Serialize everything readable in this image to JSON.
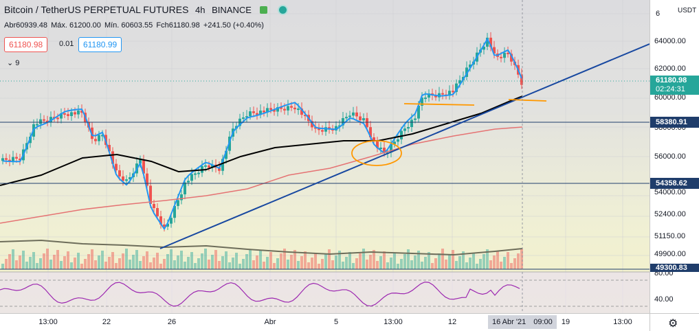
{
  "header": {
    "symbol": "Bitcoin / TetherUS PERPETUAL FUTURES",
    "interval": "4h",
    "exchange": "BINANCE"
  },
  "ohlc": {
    "open_label": "Abr",
    "open": "60939.48",
    "high_label": "Máx.",
    "high": "61200.00",
    "low_label": "Mín.",
    "low": "60603.55",
    "close_label": "Fch",
    "close": "61180.98",
    "change": "+241.50 (+0.40%)"
  },
  "order": {
    "sell_price": "61180.98",
    "spread": "0.01",
    "buy_price": "61180.99"
  },
  "indicators": {
    "collapsed_count": "9"
  },
  "price_scale": {
    "currency": "USDT",
    "labels": [
      "6",
      "64000.00",
      "62000.00",
      "60000.00",
      "58000.00",
      "56000.00",
      "54000.00",
      "52400.00",
      "51150.00",
      "49900.00",
      "80.00",
      "40.00"
    ],
    "last_price": "61180.98",
    "countdown": "02:24:31",
    "level_upper": "58380.91",
    "level_lower": "54358.62",
    "level_bottom": "49300.83"
  },
  "time_axis": {
    "labels": [
      "13:00",
      "22",
      "26",
      "Abr",
      "5",
      "13:00",
      "12",
      "19",
      "13:00"
    ],
    "cursor_label": "16 Abr '21",
    "cursor_time": "09:00"
  },
  "colors": {
    "up": "#26a69a",
    "down": "#ef5350",
    "ema_fast": "#2196f3",
    "ema_slow": "#000000",
    "ma_red": "#e57373",
    "trendline": "#1848a0",
    "annotation": "#ff9800",
    "level": "#1f3d6b",
    "rsi": "#9c27b0",
    "last_price_tag": "#26a69a",
    "level_tag": "#1f3d6b"
  },
  "icons": {
    "eye": "eye-icon",
    "gear": "gear-icon",
    "collapse": "chevron-down-icon"
  }
}
